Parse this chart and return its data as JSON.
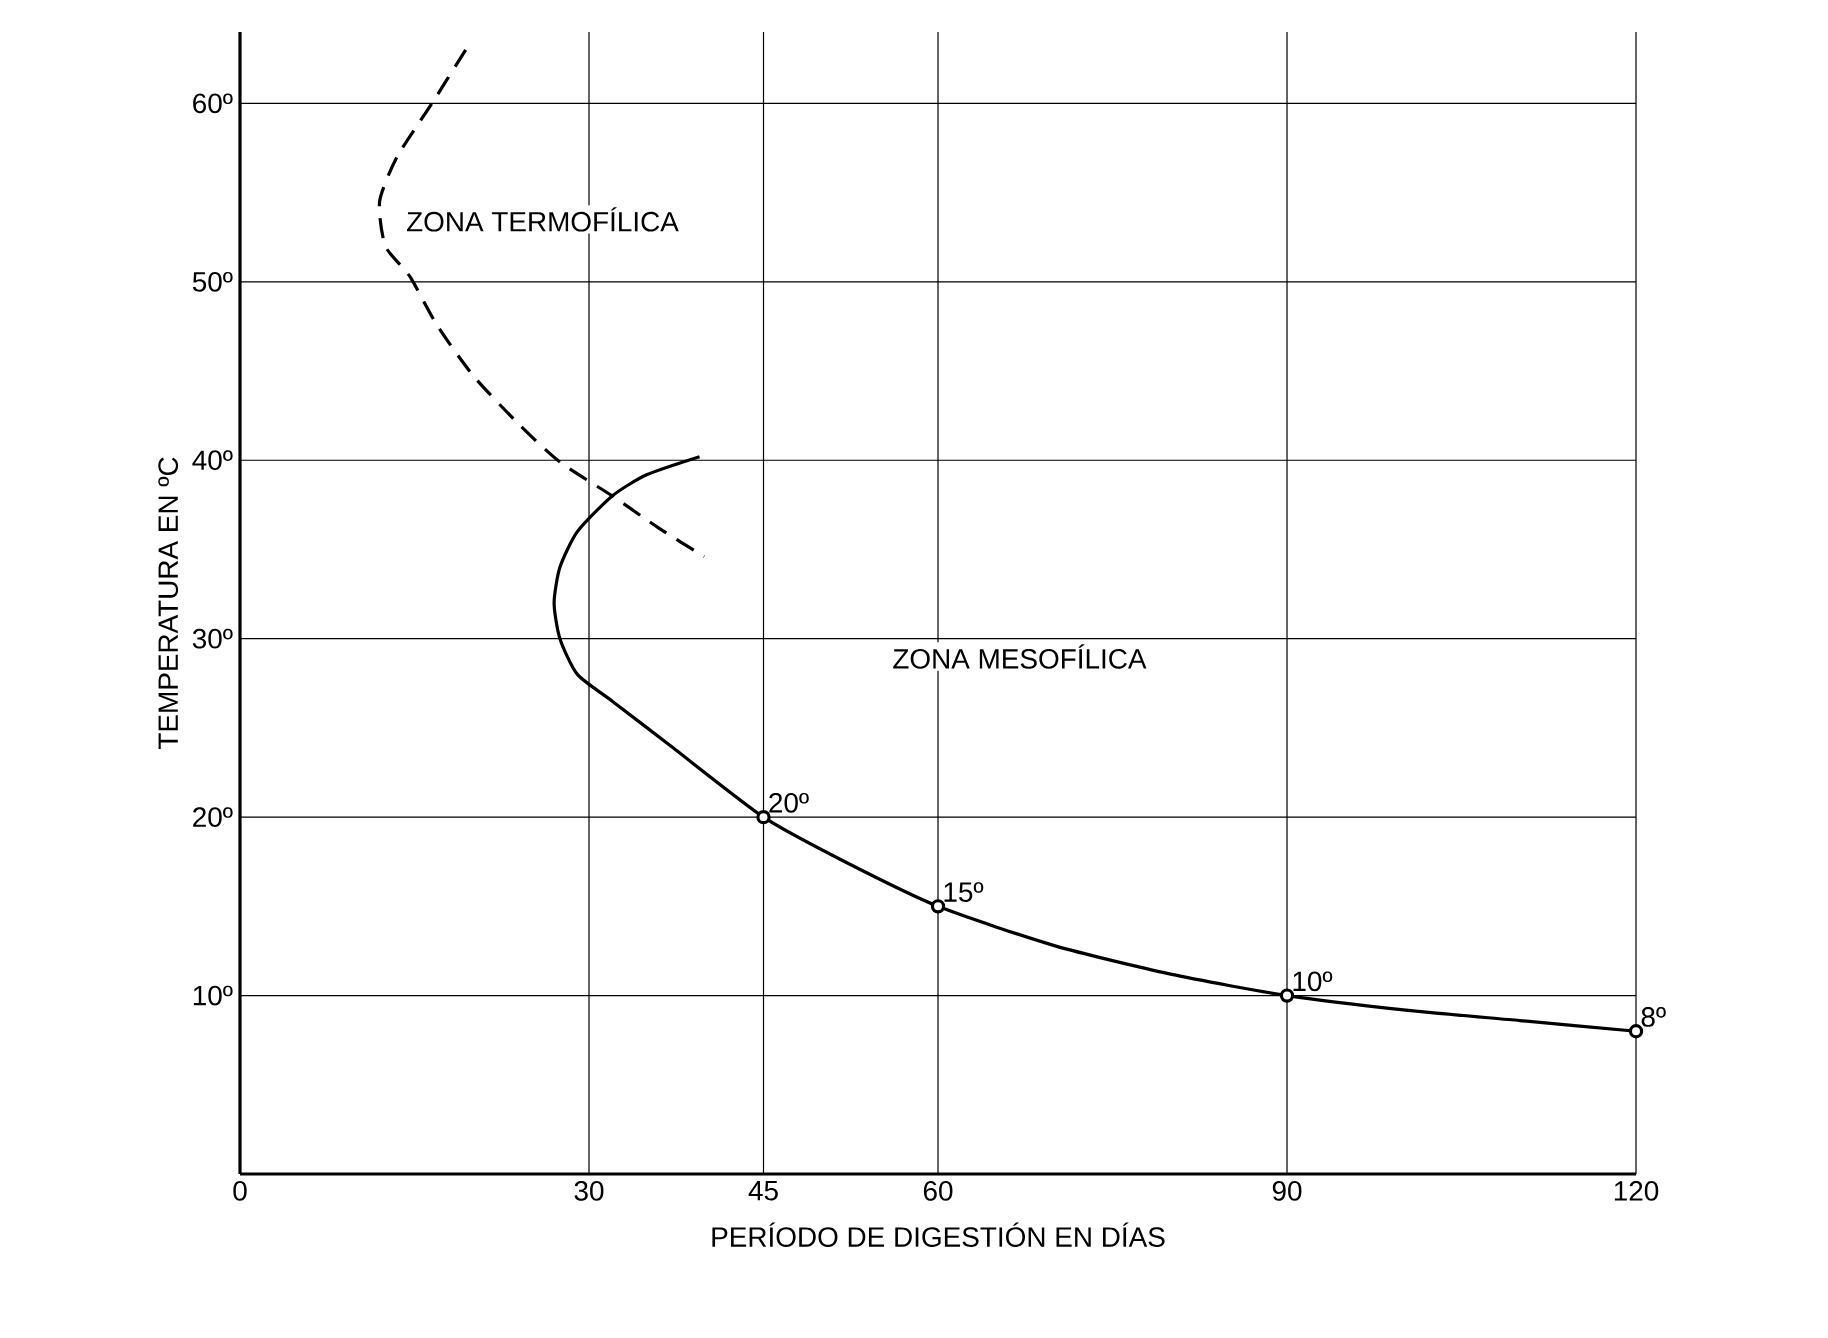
{
  "chart_data": {
    "type": "line",
    "xlabel": "PERÍODO DE DIGESTIÓN EN DÍAS",
    "ylabel": "TEMPERATURA EN ºC",
    "annotations": [
      "ZONA TERMOFÍLICA",
      "ZONA MESOFÍLICA"
    ],
    "xlim": [
      0,
      120
    ],
    "ylim": [
      0,
      64
    ],
    "xticks": [
      0,
      30,
      45,
      60,
      90,
      120
    ],
    "yticks": [
      {
        "value": 10,
        "label": "10º"
      },
      {
        "value": 20,
        "label": "20º"
      },
      {
        "value": 30,
        "label": "30º"
      },
      {
        "value": 40,
        "label": "40º"
      },
      {
        "value": 50,
        "label": "50º"
      },
      {
        "value": 60,
        "label": "60º"
      }
    ],
    "grid": true,
    "series": [
      {
        "color": "#000000",
        "line_style": "dashed",
        "x": [
          19.4,
          16.5,
          13.5,
          12,
          12.5,
          14.6,
          17,
          20.1,
          24,
          27.5,
          32,
          36,
          39.9
        ],
        "values": [
          63,
          60,
          57,
          54.5,
          52,
          50.3,
          47.5,
          44.7,
          42,
          39.9,
          38,
          36.2,
          34.6
        ]
      },
      {
        "color": "#000000",
        "line_style": "solid",
        "x": [
          39.5,
          35,
          32,
          29,
          27.5,
          27,
          27.5,
          29,
          32,
          37,
          45,
          52,
          60,
          70,
          80,
          90,
          100,
          110,
          120
        ],
        "values": [
          40.2,
          39.2,
          38,
          36,
          34,
          32,
          30,
          28,
          26.5,
          24,
          20,
          17.5,
          15,
          12.8,
          11.2,
          10,
          9.2,
          8.6,
          8
        ]
      },
      {
        "type": "scatter",
        "color": "#000000",
        "marker": "circle",
        "x": [
          45,
          60,
          90,
          120
        ],
        "values": [
          20,
          15,
          10,
          8
        ],
        "value_labels": [
          "20º",
          "15º",
          "10º",
          "8º"
        ]
      }
    ]
  }
}
